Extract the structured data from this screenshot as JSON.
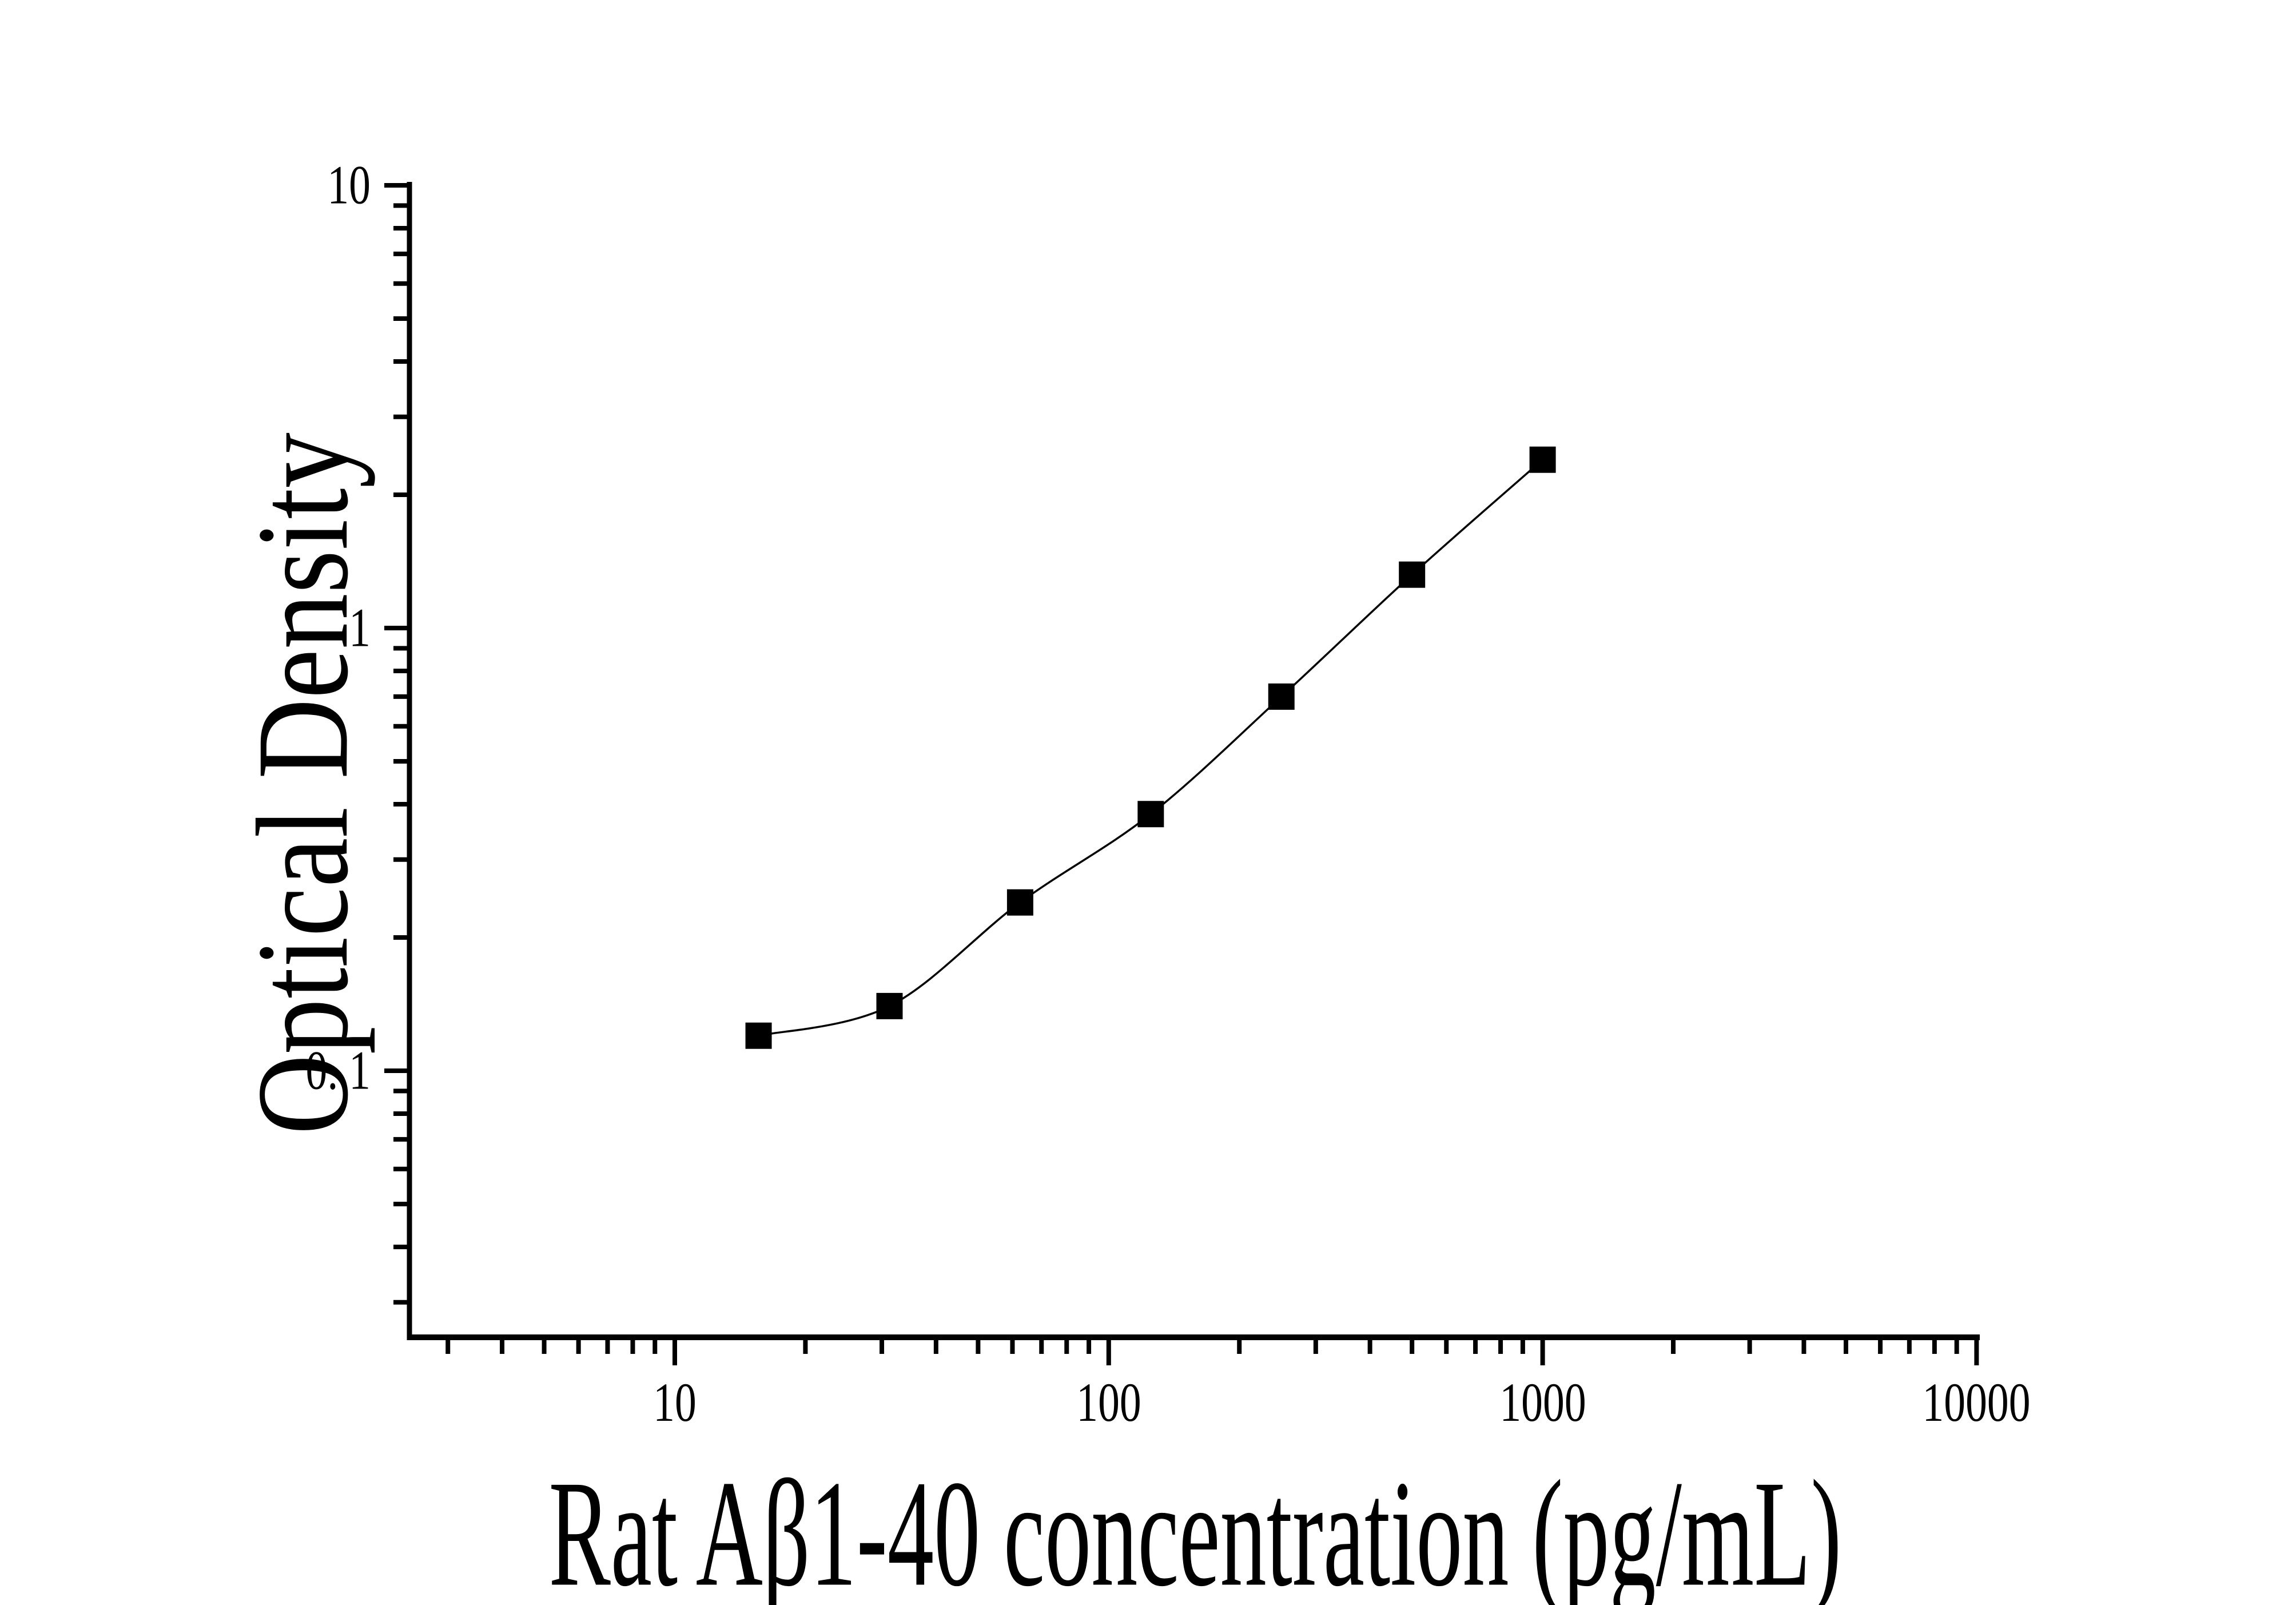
{
  "figure": {
    "background_color": "#ffffff",
    "ink_color": "#000000"
  },
  "chart_data": {
    "type": "scatter",
    "title": "",
    "xlabel": "Rat Aβ1-40 concentration (pg/mL)",
    "ylabel": "Optical Density",
    "x_scale": "log",
    "y_scale": "log",
    "xlim": [
      2.1,
      10000
    ],
    "ylim": [
      0.025,
      10
    ],
    "grid": false,
    "legend": "none",
    "x_major_ticks": [
      10,
      100,
      1000,
      10000
    ],
    "x_major_labels": [
      "10",
      "100",
      "1000",
      "10000"
    ],
    "x_minor_ticks": [
      3,
      4,
      5,
      6,
      7,
      8,
      9,
      20,
      30,
      40,
      50,
      60,
      70,
      80,
      90,
      200,
      300,
      400,
      500,
      600,
      700,
      800,
      900,
      2000,
      3000,
      4000,
      5000,
      6000,
      7000,
      8000,
      9000
    ],
    "y_major_ticks": [
      10,
      1,
      0.1
    ],
    "y_major_labels": [
      "10",
      "1",
      "0. 1"
    ],
    "y_minor_ticks": [
      9,
      8,
      7,
      6,
      5,
      4,
      3,
      2,
      0.9,
      0.8,
      0.7,
      0.6,
      0.5,
      0.4,
      0.3,
      0.2,
      0.09,
      0.08,
      0.07,
      0.06,
      0.05,
      0.04,
      0.03
    ],
    "series": [
      {
        "name": "standard-curve",
        "marker": "filled-square",
        "line": "smooth",
        "color": "#000000",
        "x": [
          15.6,
          31.25,
          62.5,
          125,
          250,
          500,
          1000
        ],
        "y": [
          0.12,
          0.14,
          0.24,
          0.38,
          0.7,
          1.32,
          2.4
        ]
      }
    ]
  }
}
